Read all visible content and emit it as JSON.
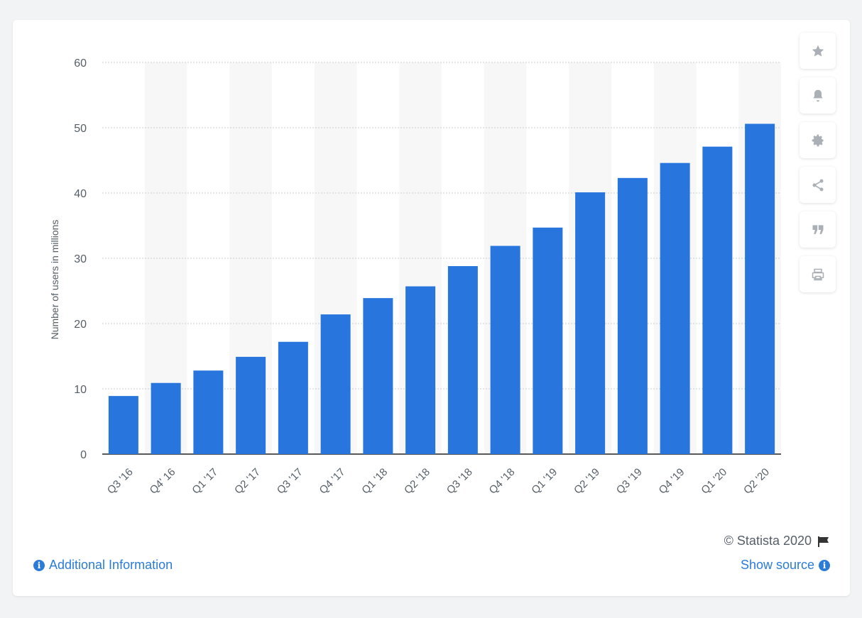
{
  "chart_data": {
    "type": "bar",
    "categories": [
      "Q3 '16",
      "Q4' 16",
      "Q1 '17",
      "Q2 '17",
      "Q3 '17",
      "Q4 '17",
      "Q1 '18",
      "Q2 '18",
      "Q3 '18",
      "Q4 '18",
      "Q1 '19",
      "Q2 '19",
      "Q3 '19",
      "Q4 '19",
      "Q1 '20",
      "Q2 '20"
    ],
    "values": [
      8.9,
      10.9,
      12.8,
      14.9,
      17.2,
      21.4,
      23.9,
      25.7,
      28.8,
      31.9,
      34.7,
      40.1,
      42.3,
      44.6,
      47.1,
      50.6
    ],
    "title": "",
    "xlabel": "",
    "ylabel": "Number of users in millions",
    "ylim": [
      0,
      60
    ],
    "yticks": [
      0,
      10,
      20,
      30,
      40,
      50,
      60
    ],
    "grid": true,
    "bar_color": "#2876dd"
  },
  "tools": [
    {
      "icon": "star-icon"
    },
    {
      "icon": "bell-icon"
    },
    {
      "icon": "gear-icon"
    },
    {
      "icon": "share-icon"
    },
    {
      "icon": "quote-icon"
    },
    {
      "icon": "print-icon"
    }
  ],
  "footer": {
    "additional_info": "Additional Information",
    "copyright": "© Statista 2020",
    "show_source": "Show source"
  },
  "colors": {
    "accent": "#2b7bd8",
    "band": "#f7f7f8"
  }
}
